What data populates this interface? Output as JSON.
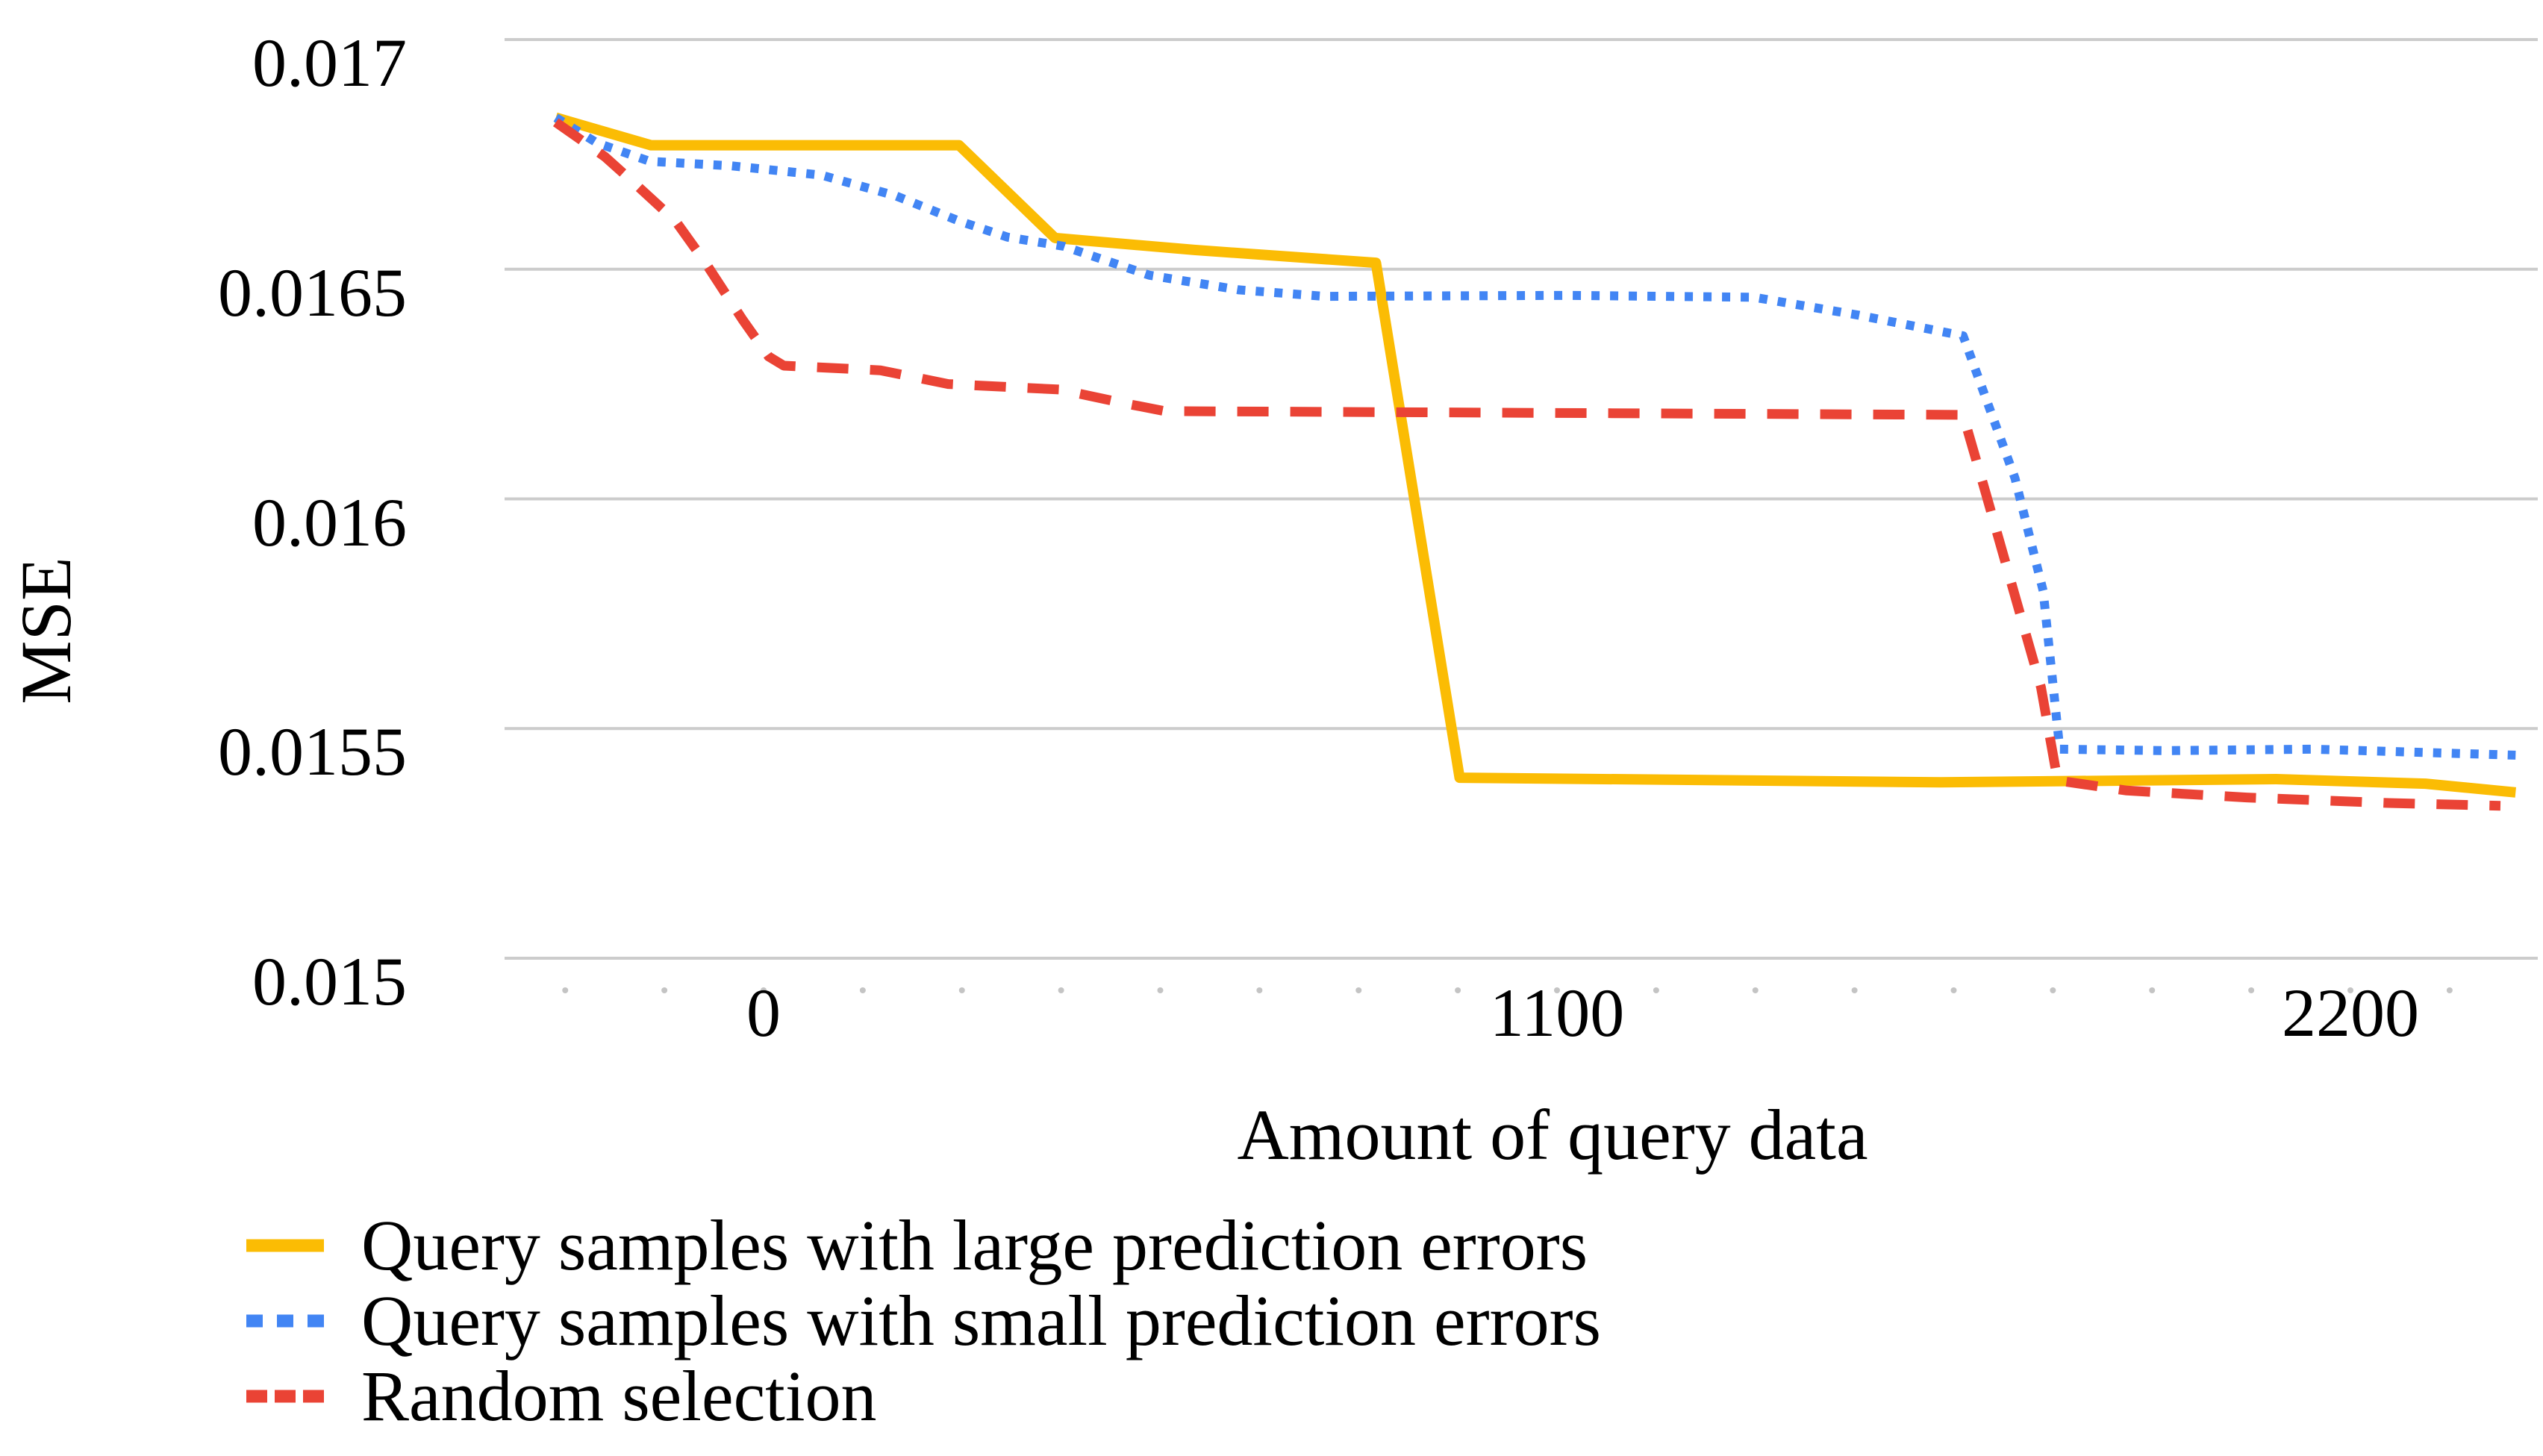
{
  "chart_data": {
    "type": "line",
    "title": "",
    "xlabel": "Amount of query data",
    "ylabel": "MSE",
    "x_ticks": [
      0,
      1100,
      2200
    ],
    "x_tick_labels": [
      "0",
      "1100",
      "2200"
    ],
    "y_ticks": [
      0.017,
      0.0165,
      0.016,
      0.0155,
      0.015
    ],
    "y_tick_labels": [
      "0.017",
      "0.0165",
      "0.016",
      "0.0155",
      "0.015"
    ],
    "xlim": [
      -360,
      2470
    ],
    "ylim": [
      0.015,
      0.017
    ],
    "x_minor_tick_step": 137.5,
    "x_minor_tick_range": [
      -275,
      2475
    ],
    "grid": "horizontal",
    "legend_position": "bottom-left",
    "background_color": "#ffffff",
    "gridline_color": "#cccccc",
    "minor_tick_color": "#c4c4c4",
    "series": [
      {
        "name": "Query samples with large prediction errors",
        "color": "#FBBC04",
        "style": "solid",
        "points": [
          [
            -288,
            0.01683
          ],
          [
            -156,
            0.01677
          ],
          [
            271,
            0.01677
          ],
          [
            404,
            0.016568
          ],
          [
            597,
            0.016542
          ],
          [
            849,
            0.016514
          ],
          [
            965,
            0.015393
          ],
          [
            1632,
            0.015383
          ],
          [
            2097,
            0.01539
          ],
          [
            2304,
            0.01538
          ],
          [
            2429,
            0.015361
          ]
        ]
      },
      {
        "name": "Query samples with small prediction errors",
        "color": "#4285F4",
        "style": "dotted",
        "points": [
          [
            -288,
            0.01683
          ],
          [
            -231,
            0.016775
          ],
          [
            -158,
            0.016735
          ],
          [
            -44,
            0.016725
          ],
          [
            80,
            0.016705
          ],
          [
            183,
            0.01666
          ],
          [
            271,
            0.016605
          ],
          [
            338,
            0.01657
          ],
          [
            416,
            0.01655
          ],
          [
            535,
            0.016487
          ],
          [
            659,
            0.016455
          ],
          [
            778,
            0.016441
          ],
          [
            1114,
            0.016443
          ],
          [
            1373,
            0.016439
          ],
          [
            1518,
            0.0164
          ],
          [
            1663,
            0.016355
          ],
          [
            1735,
            0.016045
          ],
          [
            1774,
            0.0158
          ],
          [
            1797,
            0.015455
          ],
          [
            1942,
            0.015452
          ],
          [
            2149,
            0.015455
          ],
          [
            2429,
            0.015442
          ]
        ]
      },
      {
        "name": "Random selection",
        "color": "#EA4335",
        "style": "dashed",
        "points": [
          [
            -288,
            0.01682
          ],
          [
            -220,
            0.016745
          ],
          [
            -174,
            0.01668
          ],
          [
            -122,
            0.016605
          ],
          [
            -81,
            0.016515
          ],
          [
            -29,
            0.01639
          ],
          [
            7,
            0.01631
          ],
          [
            28,
            0.01629
          ],
          [
            162,
            0.01628
          ],
          [
            256,
            0.01625
          ],
          [
            411,
            0.016238
          ],
          [
            494,
            0.01621
          ],
          [
            556,
            0.016191
          ],
          [
            1663,
            0.016183
          ],
          [
            1694,
            0.016015
          ],
          [
            1771,
            0.01559
          ],
          [
            1794,
            0.015387
          ],
          [
            1890,
            0.015365
          ],
          [
            2056,
            0.01535
          ],
          [
            2253,
            0.015338
          ],
          [
            2408,
            0.015332
          ]
        ]
      }
    ]
  }
}
